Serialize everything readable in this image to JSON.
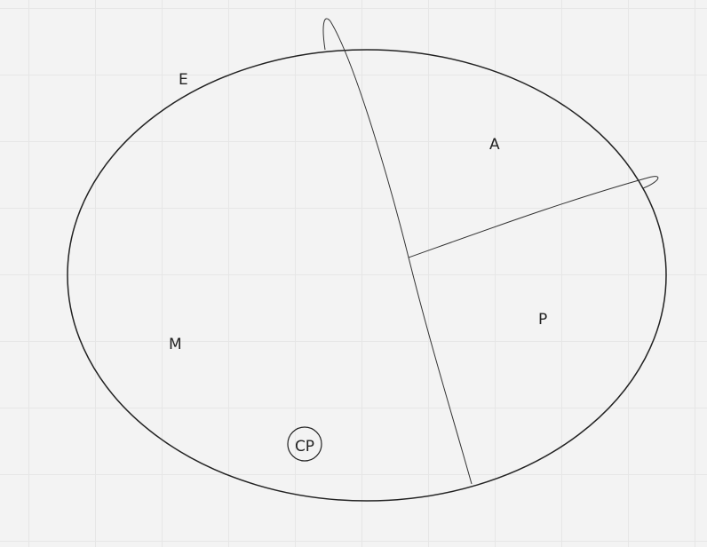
{
  "canvas": {
    "background_color": "#f3f3f3",
    "grid_line_color": "#e6e6e6",
    "stroke_color": "#222222"
  },
  "diagram": {
    "labels": {
      "e": "E",
      "a": "A",
      "p": "P",
      "m": "M",
      "cp": "CP"
    }
  }
}
